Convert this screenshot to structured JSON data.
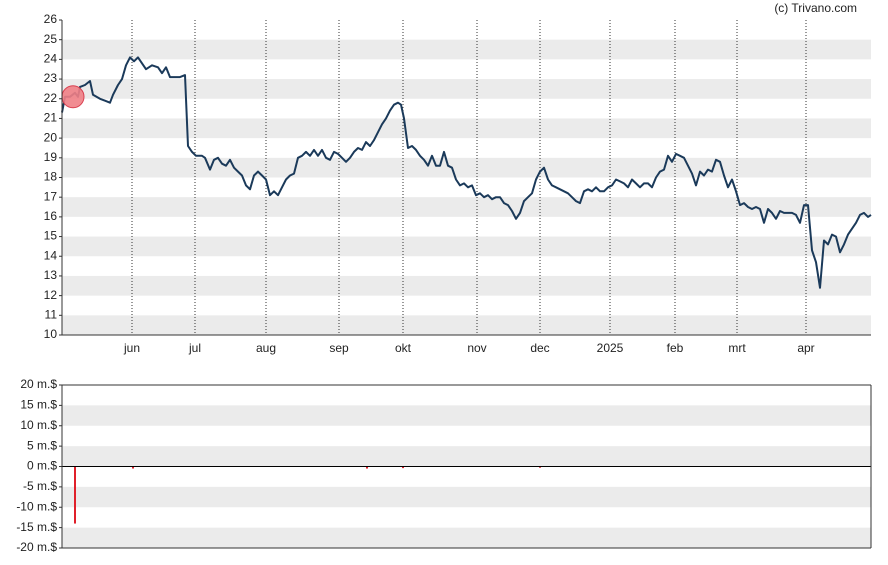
{
  "credit": "(c) Trivano.com",
  "chart_data": [
    {
      "type": "line",
      "color": "#1b3a5a",
      "bands": true,
      "grid_x": true,
      "xlim": [
        0,
        202.25
      ],
      "xticks": [
        {
          "value": 17.5,
          "label": "jun"
        },
        {
          "value": 33.25,
          "label": "jul"
        },
        {
          "value": 51,
          "label": "aug"
        },
        {
          "value": 69.25,
          "label": "sep"
        },
        {
          "value": 85.25,
          "label": "okt"
        },
        {
          "value": 103.75,
          "label": "nov"
        },
        {
          "value": 119.5,
          "label": "dec"
        },
        {
          "value": 137,
          "label": "2025"
        },
        {
          "value": 153.25,
          "label": "feb"
        },
        {
          "value": 168.75,
          "label": "mrt"
        },
        {
          "value": 186,
          "label": "apr"
        }
      ],
      "ylim": [
        10,
        26
      ],
      "yticks": [
        10,
        11,
        12,
        13,
        14,
        15,
        16,
        17,
        18,
        19,
        20,
        21,
        22,
        23,
        24,
        25,
        26
      ],
      "x": [
        0,
        0.75,
        2,
        3.25,
        4,
        4.5,
        5.75,
        7,
        7.75,
        9.5,
        10.75,
        12,
        12.75,
        14,
        15,
        16,
        17,
        18,
        19,
        20,
        21,
        22.5,
        24,
        25,
        26,
        27,
        28.25,
        29.5,
        30.75,
        31.5,
        32.5,
        33.5,
        35,
        35.75,
        37,
        38,
        39,
        40,
        41,
        42,
        43,
        44,
        45,
        46,
        47,
        48,
        49,
        50,
        51,
        52,
        53,
        54,
        55,
        56,
        57,
        58,
        59,
        60,
        61,
        62,
        63,
        64,
        65,
        66,
        67,
        68,
        69,
        70,
        71,
        72,
        73,
        74,
        75,
        76,
        77,
        78,
        79,
        80,
        81,
        82,
        83,
        84,
        84.75,
        85.5,
        86.5,
        87.5,
        88.5,
        89.5,
        90.5,
        91.5,
        92.5,
        93.5,
        94.5,
        95.5,
        96.5,
        97.5,
        98.5,
        99.5,
        100.5,
        101.5,
        102.5,
        103.5,
        104.5,
        105.5,
        106.5,
        107.5,
        108.5,
        109.5,
        110.5,
        111.5,
        112.5,
        113.5,
        114.5,
        115.5,
        116.5,
        117.5,
        118.5,
        119.5,
        120.5,
        121.5,
        122.5,
        123.5,
        124.5,
        125.5,
        126.5,
        127.5,
        128.5,
        129.5,
        130.5,
        131.5,
        132.5,
        133.5,
        134.5,
        135.5,
        136.5,
        137.5,
        138.5,
        139.5,
        140.5,
        141.5,
        142.5,
        143.5,
        144.5,
        145.5,
        146.5,
        147.5,
        148.5,
        149.5,
        150.5,
        151.5,
        152.5,
        153.5,
        154.5,
        155.5,
        156.5,
        157.5,
        158.5,
        159.5,
        160.5,
        161.5,
        162.5,
        163.5,
        164.5,
        165.5,
        166.5,
        167.5,
        168.5,
        169.5,
        170.5,
        171.5,
        172.5,
        173.5,
        174.5,
        175.5,
        176.5,
        177.5,
        178.5,
        179.5,
        180.5,
        181.5,
        182.5,
        183.5,
        184.5,
        185.5,
        186.5,
        187.5,
        188.5,
        189.5,
        190.5,
        191.5,
        192.5,
        193.5,
        194.5,
        195.5,
        196.5,
        197.5,
        198.5,
        199.5,
        200.5,
        201.5,
        202.25
      ],
      "values": [
        21.3,
        22.1,
        22.1,
        22.3,
        22.1,
        22.6,
        22.7,
        22.9,
        22.2,
        22.0,
        21.9,
        21.8,
        22.2,
        22.7,
        23.0,
        23.7,
        24.1,
        23.9,
        24.1,
        23.8,
        23.5,
        23.7,
        23.6,
        23.3,
        23.6,
        23.1,
        23.1,
        23.1,
        23.2,
        19.6,
        19.3,
        19.1,
        19.1,
        19.0,
        18.4,
        18.9,
        19.0,
        18.7,
        18.6,
        18.9,
        18.5,
        18.3,
        18.1,
        17.6,
        17.4,
        18.1,
        18.3,
        18.1,
        17.9,
        17.1,
        17.3,
        17.1,
        17.5,
        17.9,
        18.1,
        18.2,
        19.0,
        19.1,
        19.3,
        19.1,
        19.4,
        19.1,
        19.4,
        19.0,
        18.9,
        19.3,
        19.2,
        19.0,
        18.8,
        19.0,
        19.3,
        19.5,
        19.4,
        19.8,
        19.6,
        19.9,
        20.3,
        20.7,
        21.0,
        21.4,
        21.7,
        21.8,
        21.7,
        21.0,
        19.5,
        19.6,
        19.4,
        19.1,
        18.9,
        18.6,
        19.1,
        18.6,
        18.6,
        19.3,
        18.6,
        18.5,
        17.9,
        17.6,
        17.7,
        17.5,
        17.6,
        17.1,
        17.2,
        17.0,
        17.1,
        16.9,
        17.0,
        17.0,
        16.7,
        16.6,
        16.3,
        15.9,
        16.2,
        16.8,
        17.0,
        17.2,
        17.9,
        18.3,
        18.5,
        17.9,
        17.6,
        17.5,
        17.4,
        17.3,
        17.2,
        17.0,
        16.8,
        16.7,
        17.3,
        17.4,
        17.3,
        17.5,
        17.3,
        17.3,
        17.5,
        17.6,
        17.9,
        17.8,
        17.7,
        17.5,
        17.9,
        17.7,
        17.5,
        17.7,
        17.7,
        17.5,
        18.0,
        18.3,
        18.4,
        19.1,
        18.8,
        19.2,
        19.1,
        19.0,
        18.6,
        18.2,
        17.6,
        18.3,
        18.1,
        18.4,
        18.3,
        18.9,
        18.8,
        18.1,
        17.5,
        17.9,
        17.3,
        16.6,
        16.7,
        16.5,
        16.4,
        16.5,
        16.4,
        15.7,
        16.4,
        16.2,
        15.9,
        16.3,
        16.2,
        16.2,
        16.2,
        16.1,
        15.7,
        16.6,
        16.6,
        14.3,
        13.7,
        12.4,
        14.8,
        14.6,
        15.1,
        15.0,
        14.2,
        14.6,
        15.1,
        15.4,
        15.7,
        16.1,
        16.2,
        16.0,
        16.1
      ],
      "events": [
        {
          "x": 2.75,
          "y": 22.1,
          "color": "#ef7f86"
        }
      ]
    },
    {
      "type": "bar",
      "color": "#e0202a",
      "bands": true,
      "xlim": [
        0,
        202.25
      ],
      "ylim": [
        -20,
        20
      ],
      "yticks": [
        {
          "value": -20,
          "label": "-20 m.$"
        },
        {
          "value": -15,
          "label": "-15 m.$"
        },
        {
          "value": -10,
          "label": "-10 m.$"
        },
        {
          "value": -5,
          "label": "-5 m.$"
        },
        {
          "value": 0,
          "label": "0 m.$"
        },
        {
          "value": 5,
          "label": "5 m.$"
        },
        {
          "value": 10,
          "label": "10 m.$"
        },
        {
          "value": 15,
          "label": "15 m.$"
        },
        {
          "value": 20,
          "label": "20 m.$"
        }
      ],
      "x": [
        3.25,
        17.75,
        76.25,
        85.25,
        119.5
      ],
      "values": [
        -14,
        -0.5,
        -0.5,
        -0.4,
        -0.3
      ]
    }
  ]
}
